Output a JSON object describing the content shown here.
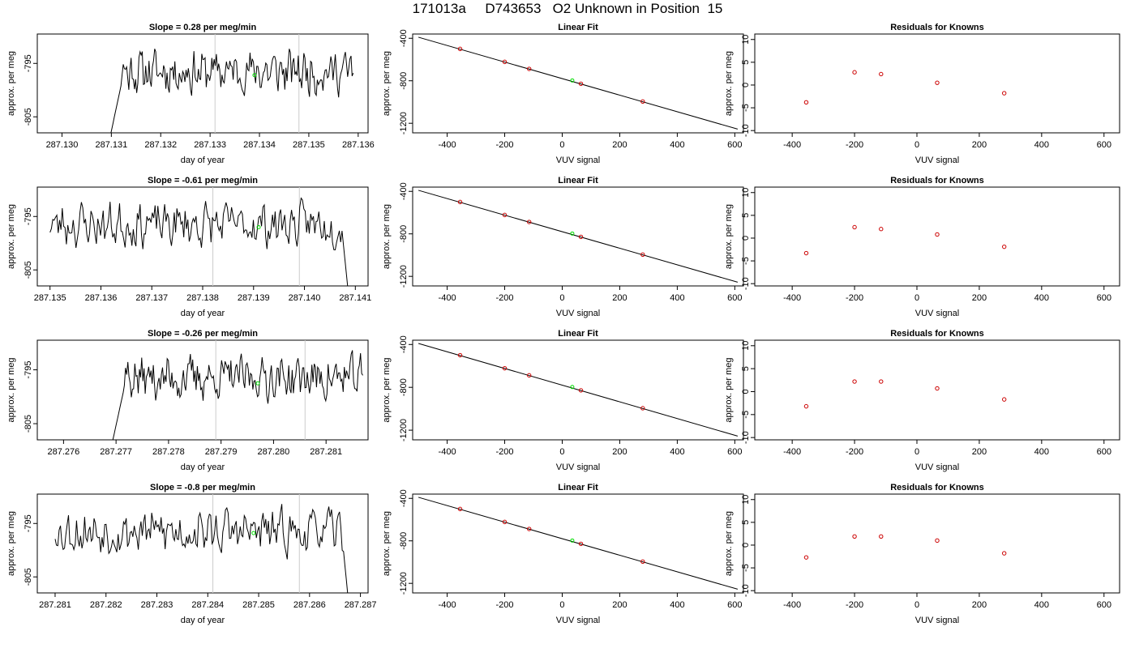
{
  "title": "171013a     D743653   O2 Unknown in Position  15",
  "colors": {
    "trace": "#000000",
    "vline": "#cccccc",
    "unknown": "#00dd00",
    "known": "#cc0000",
    "fitline": "#000000"
  },
  "chart_data": [
    {
      "type": "line",
      "title": "Slope =  0.28  per meg/min",
      "xlabel": "day of year",
      "ylabel": "approx. per meg",
      "xlim": [
        287.1295,
        287.1362
      ],
      "ylim": [
        -808,
        -789.5
      ],
      "xticks": [
        "287.130",
        "287.131",
        "287.132",
        "287.133",
        "287.134",
        "287.135",
        "287.136"
      ],
      "xtick_values": [
        287.13,
        287.131,
        287.132,
        287.133,
        287.134,
        287.135,
        287.136
      ],
      "yticks": [
        "-805",
        "-795"
      ],
      "ytick_values": [
        -805,
        -795
      ],
      "series_start": 287.1309,
      "series_end": 287.1359,
      "vlines": [
        287.1331,
        287.1348
      ],
      "unknown_point": {
        "x": 287.1339,
        "y": -797.2
      },
      "clip_start": true,
      "clip_end": false,
      "seed": 11
    },
    {
      "type": "scatter",
      "title": "Linear Fit",
      "xlabel": "VUV signal",
      "ylabel": "approx. per meg",
      "xlim": [
        -520,
        630
      ],
      "ylim": [
        -1290,
        -360
      ],
      "xticks": [
        "-400",
        "-200",
        "0",
        "200",
        "400",
        "600"
      ],
      "xtick_values": [
        -400,
        -200,
        0,
        200,
        400,
        600
      ],
      "yticks": [
        "-400",
        "-800",
        "-1200"
      ],
      "ytick_values": [
        -400,
        -800,
        -1200
      ],
      "fit_line": {
        "x": [
          -500,
          610
        ],
        "y": [
          -390,
          -1255
        ]
      },
      "known_points": [
        [
          -355,
          -500
        ],
        [
          -200,
          -622
        ],
        [
          -115,
          -688
        ],
        [
          65,
          -828
        ],
        [
          280,
          -995
        ]
      ],
      "unknown_point": [
        35,
        -797
      ]
    },
    {
      "type": "scatter",
      "title": "Residuals for Knowns",
      "xlabel": "VUV signal",
      "ylabel": "approx. per meg",
      "xlim": [
        -520,
        650
      ],
      "ylim": [
        -10.5,
        11.2
      ],
      "xticks": [
        "-400",
        "-200",
        "0",
        "200",
        "400",
        "600"
      ],
      "xtick_values": [
        -400,
        -200,
        0,
        200,
        400,
        600
      ],
      "yticks": [
        "-10",
        "-5",
        "0",
        "5",
        "10"
      ],
      "ytick_values": [
        -10,
        -5,
        0,
        5,
        10
      ],
      "known_points": [
        [
          -355,
          -3.8
        ],
        [
          -200,
          2.8
        ],
        [
          -115,
          2.4
        ],
        [
          65,
          0.5
        ],
        [
          280,
          -1.8
        ]
      ]
    },
    {
      "type": "line",
      "title": "Slope =  -0.61  per meg/min",
      "xlabel": "day of year",
      "ylabel": "approx. per meg",
      "xlim": [
        287.13475,
        287.14125
      ],
      "ylim": [
        -808,
        -789.5
      ],
      "xticks": [
        "287.135",
        "287.136",
        "287.137",
        "287.138",
        "287.139",
        "287.140",
        "287.141"
      ],
      "xtick_values": [
        287.135,
        287.136,
        287.137,
        287.138,
        287.139,
        287.14,
        287.141
      ],
      "yticks": [
        "-805",
        "-795"
      ],
      "ytick_values": [
        -805,
        -795
      ],
      "series_start": 287.135,
      "series_end": 287.1409,
      "vlines": [
        287.1382,
        287.1399
      ],
      "unknown_point": {
        "x": 287.1391,
        "y": -797.0
      },
      "clip_start": false,
      "clip_end": true,
      "seed": 23
    },
    {
      "type": "scatter",
      "title": "Linear Fit",
      "xlabel": "VUV signal",
      "ylabel": "approx. per meg",
      "xlim": [
        -520,
        630
      ],
      "ylim": [
        -1290,
        -360
      ],
      "xticks": [
        "-400",
        "-200",
        "0",
        "200",
        "400",
        "600"
      ],
      "xtick_values": [
        -400,
        -200,
        0,
        200,
        400,
        600
      ],
      "yticks": [
        "-400",
        "-800",
        "-1200"
      ],
      "ytick_values": [
        -400,
        -800,
        -1200
      ],
      "fit_line": {
        "x": [
          -500,
          610
        ],
        "y": [
          -390,
          -1255
        ]
      },
      "known_points": [
        [
          -355,
          -500
        ],
        [
          -200,
          -622
        ],
        [
          -115,
          -688
        ],
        [
          65,
          -828
        ],
        [
          280,
          -995
        ]
      ],
      "unknown_point": [
        35,
        -797
      ]
    },
    {
      "type": "scatter",
      "title": "Residuals for Knowns",
      "xlabel": "VUV signal",
      "ylabel": "approx. per meg",
      "xlim": [
        -520,
        650
      ],
      "ylim": [
        -10.5,
        11.2
      ],
      "xticks": [
        "-400",
        "-200",
        "0",
        "200",
        "400",
        "600"
      ],
      "xtick_values": [
        -400,
        -200,
        0,
        200,
        400,
        600
      ],
      "yticks": [
        "-10",
        "-5",
        "0",
        "5",
        "10"
      ],
      "ytick_values": [
        -10,
        -5,
        0,
        5,
        10
      ],
      "known_points": [
        [
          -355,
          -3.3
        ],
        [
          -200,
          2.4
        ],
        [
          -115,
          2.0
        ],
        [
          65,
          0.8
        ],
        [
          280,
          -1.9
        ]
      ]
    },
    {
      "type": "line",
      "title": "Slope =  -0.26  per meg/min",
      "xlabel": "day of year",
      "ylabel": "approx. per meg",
      "xlim": [
        287.2755,
        287.2818
      ],
      "ylim": [
        -808,
        -789.5
      ],
      "xticks": [
        "287.276",
        "287.277",
        "287.278",
        "287.279",
        "287.280",
        "287.281"
      ],
      "xtick_values": [
        287.276,
        287.277,
        287.278,
        287.279,
        287.28,
        287.281
      ],
      "yticks": [
        "-805",
        "-795"
      ],
      "ytick_values": [
        -805,
        -795
      ],
      "series_start": 287.27685,
      "series_end": 287.2817,
      "vlines": [
        287.2789,
        287.2806
      ],
      "unknown_point": {
        "x": 287.2797,
        "y": -797.5
      },
      "clip_start": true,
      "clip_end": false,
      "seed": 37
    },
    {
      "type": "scatter",
      "title": "Linear Fit",
      "xlabel": "VUV signal",
      "ylabel": "approx. per meg",
      "xlim": [
        -520,
        630
      ],
      "ylim": [
        -1290,
        -360
      ],
      "xticks": [
        "-400",
        "-200",
        "0",
        "200",
        "400",
        "600"
      ],
      "xtick_values": [
        -400,
        -200,
        0,
        200,
        400,
        600
      ],
      "yticks": [
        "-400",
        "-800",
        "-1200"
      ],
      "ytick_values": [
        -400,
        -800,
        -1200
      ],
      "fit_line": {
        "x": [
          -500,
          610
        ],
        "y": [
          -390,
          -1255
        ]
      },
      "known_points": [
        [
          -355,
          -500
        ],
        [
          -200,
          -622
        ],
        [
          -115,
          -688
        ],
        [
          65,
          -828
        ],
        [
          280,
          -995
        ]
      ],
      "unknown_point": [
        35,
        -797
      ]
    },
    {
      "type": "scatter",
      "title": "Residuals for Knowns",
      "xlabel": "VUV signal",
      "ylabel": "approx. per meg",
      "xlim": [
        -520,
        650
      ],
      "ylim": [
        -10.5,
        11.2
      ],
      "xticks": [
        "-400",
        "-200",
        "0",
        "200",
        "400",
        "600"
      ],
      "xtick_values": [
        -400,
        -200,
        0,
        200,
        400,
        600
      ],
      "yticks": [
        "-10",
        "-5",
        "0",
        "5",
        "10"
      ],
      "ytick_values": [
        -10,
        -5,
        0,
        5,
        10
      ],
      "known_points": [
        [
          -355,
          -3.2
        ],
        [
          -200,
          2.2
        ],
        [
          -115,
          2.2
        ],
        [
          65,
          0.7
        ],
        [
          280,
          -1.7
        ]
      ]
    },
    {
      "type": "line",
      "title": "Slope =  -0.8  per meg/min",
      "xlabel": "day of year",
      "ylabel": "approx. per meg",
      "xlim": [
        287.28065,
        287.28715
      ],
      "ylim": [
        -808,
        -789.5
      ],
      "xticks": [
        "287.281",
        "287.282",
        "287.283",
        "287.284",
        "287.285",
        "287.286",
        "287.287"
      ],
      "xtick_values": [
        287.281,
        287.282,
        287.283,
        287.284,
        287.285,
        287.286,
        287.287
      ],
      "yticks": [
        "-805",
        "-795"
      ],
      "ytick_values": [
        -805,
        -795
      ],
      "series_start": 287.281,
      "series_end": 287.2868,
      "vlines": [
        287.2841,
        287.2858
      ],
      "unknown_point": {
        "x": 287.2849,
        "y": -796.8
      },
      "clip_start": false,
      "clip_end": true,
      "seed": 53
    },
    {
      "type": "scatter",
      "title": "Linear Fit",
      "xlabel": "VUV signal",
      "ylabel": "approx. per meg",
      "xlim": [
        -520,
        630
      ],
      "ylim": [
        -1290,
        -360
      ],
      "xticks": [
        "-400",
        "-200",
        "0",
        "200",
        "400",
        "600"
      ],
      "xtick_values": [
        -400,
        -200,
        0,
        200,
        400,
        600
      ],
      "yticks": [
        "-400",
        "-800",
        "-1200"
      ],
      "ytick_values": [
        -400,
        -800,
        -1200
      ],
      "fit_line": {
        "x": [
          -500,
          610
        ],
        "y": [
          -390,
          -1255
        ]
      },
      "known_points": [
        [
          -355,
          -500
        ],
        [
          -200,
          -622
        ],
        [
          -115,
          -688
        ],
        [
          65,
          -828
        ],
        [
          280,
          -995
        ]
      ],
      "unknown_point": [
        35,
        -797
      ]
    },
    {
      "type": "scatter",
      "title": "Residuals for Knowns",
      "xlabel": "VUV signal",
      "ylabel": "approx. per meg",
      "xlim": [
        -520,
        650
      ],
      "ylim": [
        -10.5,
        11.2
      ],
      "xticks": [
        "-400",
        "-200",
        "0",
        "200",
        "400",
        "600"
      ],
      "xtick_values": [
        -400,
        -200,
        0,
        200,
        400,
        600
      ],
      "yticks": [
        "-10",
        "-5",
        "0",
        "5",
        "10"
      ],
      "ytick_values": [
        -10,
        -5,
        0,
        5,
        10
      ],
      "known_points": [
        [
          -355,
          -2.7
        ],
        [
          -200,
          1.9
        ],
        [
          -115,
          1.9
        ],
        [
          65,
          1.0
        ],
        [
          280,
          -1.8
        ]
      ]
    }
  ]
}
